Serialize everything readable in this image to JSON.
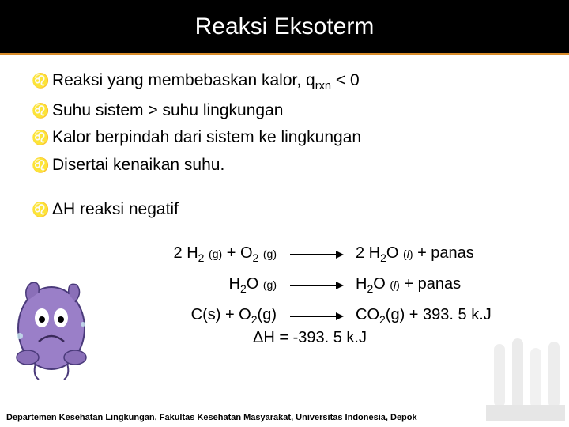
{
  "title": "Reaksi Eksoterm",
  "bullets_group1": [
    {
      "text": "Reaksi yang membebaskan kalor, q",
      "sub": "rxn",
      "tail": " < 0"
    },
    {
      "text": "Suhu sistem > suhu lingkungan",
      "sub": "",
      "tail": ""
    },
    {
      "text": "Kalor berpindah dari sistem ke lingkungan",
      "sub": "",
      "tail": ""
    },
    {
      "text": "Disertai kenaikan suhu.",
      "sub": "",
      "tail": ""
    }
  ],
  "bullets_group2": [
    {
      "text": "ΔH reaksi negatif",
      "sub": "",
      "tail": ""
    }
  ],
  "equations": {
    "arrow_color": "#000000",
    "rows": [
      {
        "left_html": "2 H<sub>2</sub> <span class='subgas'>(g)</span> + O<sub>2</sub> <span class='subgas'>(g)</span>",
        "right_html": "2 H<sub>2</sub>O <span class='subgas'>(<span class='italic'>l</span>)</span> + panas",
        "extra": ""
      },
      {
        "left_html": "H<sub>2</sub>O <span class='subgas'>(g)</span>",
        "right_html": "H<sub>2</sub>O <span class='subgas'>(<span class='italic'>l</span>)</span> + panas",
        "extra": ""
      },
      {
        "left_html": "C(s) + O<sub>2</sub>(g)",
        "right_html": "CO<sub>2</sub>(g) + 393. 5 k.J",
        "extra": "ΔH = -393. 5 k.J"
      }
    ]
  },
  "footer": "Departemen Kesehatan Lingkungan, Fakultas Kesehatan Masyarakat, Universitas Indonesia, Depok",
  "colors": {
    "header_bg": "#000000",
    "header_border": "#d88c2a",
    "bullet_icon": "#696969"
  }
}
